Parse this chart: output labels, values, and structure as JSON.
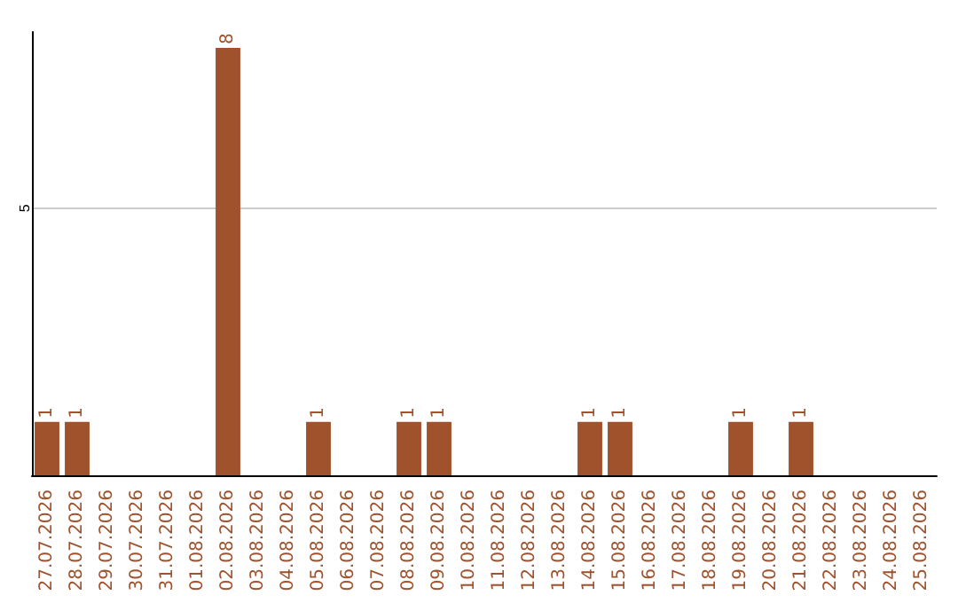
{
  "chart_data": {
    "type": "bar",
    "categories": [
      "27.07.2026",
      "28.07.2026",
      "29.07.2026",
      "30.07.2026",
      "31.07.2026",
      "01.08.2026",
      "02.08.2026",
      "03.08.2026",
      "04.08.2026",
      "05.08.2026",
      "06.08.2026",
      "07.08.2026",
      "08.08.2026",
      "09.08.2026",
      "10.08.2026",
      "11.08.2026",
      "12.08.2026",
      "13.08.2026",
      "14.08.2026",
      "15.08.2026",
      "16.08.2026",
      "17.08.2026",
      "18.08.2026",
      "19.08.2026",
      "20.08.2026",
      "21.08.2026",
      "22.08.2026",
      "23.08.2026",
      "24.08.2026",
      "25.08.2026"
    ],
    "values": [
      1,
      1,
      0,
      0,
      0,
      0,
      8,
      0,
      0,
      1,
      0,
      0,
      1,
      1,
      0,
      0,
      0,
      0,
      1,
      1,
      0,
      0,
      0,
      1,
      0,
      1,
      0,
      0,
      0,
      0
    ],
    "value_labels": [
      "1",
      "1",
      null,
      null,
      null,
      null,
      "8",
      null,
      null,
      "1",
      null,
      null,
      "1",
      "1",
      null,
      null,
      null,
      null,
      "1",
      "1",
      null,
      null,
      null,
      "1",
      null,
      "1",
      null,
      null,
      null,
      null
    ],
    "color": "#a0522d",
    "ylim": [
      0,
      8.3
    ],
    "yticks": [
      5
    ],
    "grid": "y"
  }
}
